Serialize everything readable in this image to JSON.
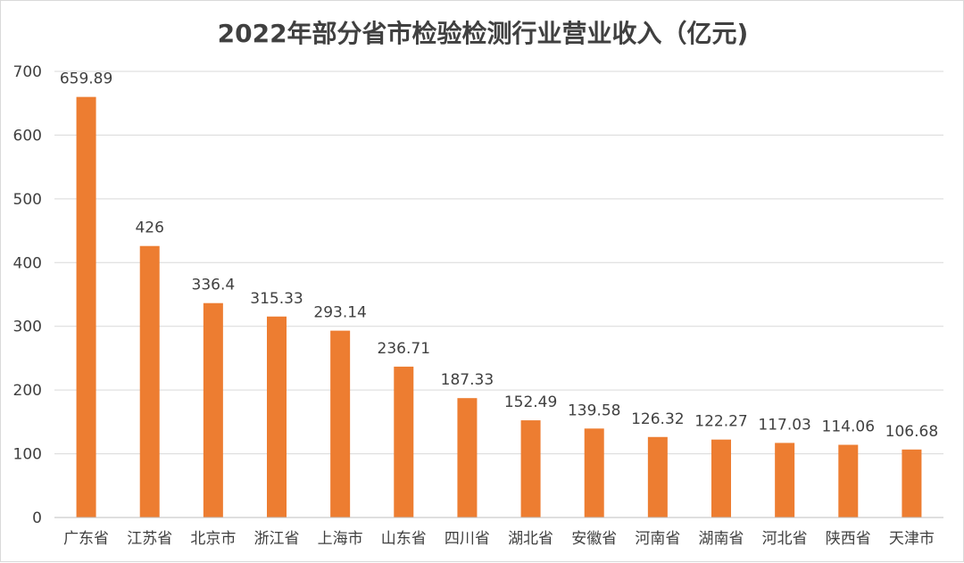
{
  "chart_data": {
    "type": "bar",
    "title": "2022年部分省市检验检测行业营业收入（亿元)",
    "xlabel": "",
    "ylabel": "",
    "ylim": [
      0,
      700
    ],
    "yticks": [
      0,
      100,
      200,
      300,
      400,
      500,
      600,
      700
    ],
    "grid": true,
    "legend": "none",
    "bar_color": "#ED7D31",
    "categories": [
      "广东省",
      "江苏省",
      "北京市",
      "浙江省",
      "上海市",
      "山东省",
      "四川省",
      "湖北省",
      "安徽省",
      "河南省",
      "湖南省",
      "河北省",
      "陕西省",
      "天津市"
    ],
    "values": [
      659.89,
      426,
      336.4,
      315.33,
      293.14,
      236.71,
      187.33,
      152.49,
      139.58,
      126.32,
      122.27,
      117.03,
      114.06,
      106.68
    ],
    "value_labels": [
      "659.89",
      "426",
      "336.4",
      "315.33",
      "293.14",
      "236.71",
      "187.33",
      "152.49",
      "139.58",
      "126.32",
      "122.27",
      "117.03",
      "114.06",
      "106.68"
    ]
  }
}
